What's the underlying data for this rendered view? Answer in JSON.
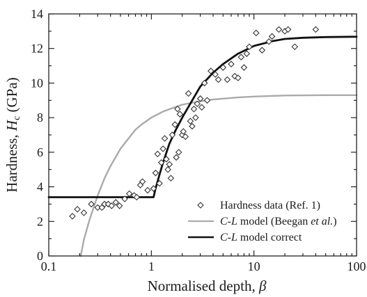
{
  "chart_data": {
    "type": "scatter",
    "x_scale": "log",
    "xlim": [
      0.1,
      100
    ],
    "ylim": [
      0,
      14
    ],
    "x_ticks": [
      "0.1",
      "1",
      "10",
      "100"
    ],
    "y_ticks": [
      "0",
      "2",
      "4",
      "6",
      "8",
      "10",
      "12",
      "14"
    ],
    "xlabel": "Normalised depth, β",
    "ylabel": "Hardness, Hc (GPa)",
    "ylabel_parts": {
      "main": "Hardness, ",
      "var": "H",
      "sub": "c",
      "unit": " (GPa)"
    },
    "xlabel_parts": {
      "main": "Normalised depth, ",
      "var": "β"
    },
    "grid": false,
    "legend_position": "bottom-right",
    "series": [
      {
        "name": "Hardness data (Ref. 1)",
        "legend_parts": [
          "Hardness data (Ref. 1)"
        ],
        "kind": "scatter",
        "marker": "diamond-open",
        "color": "#333333",
        "points": [
          [
            0.17,
            2.3
          ],
          [
            0.19,
            2.7
          ],
          [
            0.22,
            2.5
          ],
          [
            0.26,
            3.0
          ],
          [
            0.3,
            2.8
          ],
          [
            0.33,
            2.8
          ],
          [
            0.35,
            3.0
          ],
          [
            0.38,
            3.0
          ],
          [
            0.41,
            2.9
          ],
          [
            0.45,
            3.1
          ],
          [
            0.49,
            2.9
          ],
          [
            0.55,
            3.3
          ],
          [
            0.61,
            3.6
          ],
          [
            0.68,
            3.5
          ],
          [
            0.72,
            3.4
          ],
          [
            0.78,
            4.1
          ],
          [
            0.82,
            4.3
          ],
          [
            0.92,
            3.8
          ],
          [
            1.05,
            3.9
          ],
          [
            1.1,
            4.8
          ],
          [
            1.15,
            5.9
          ],
          [
            1.2,
            4.2
          ],
          [
            1.25,
            5.4
          ],
          [
            1.3,
            6.2
          ],
          [
            1.35,
            6.8
          ],
          [
            1.4,
            5.6
          ],
          [
            1.45,
            5.0
          ],
          [
            1.5,
            5.3
          ],
          [
            1.55,
            4.5
          ],
          [
            1.6,
            7.0
          ],
          [
            1.7,
            7.6
          ],
          [
            1.75,
            5.7
          ],
          [
            1.8,
            8.5
          ],
          [
            1.85,
            6.0
          ],
          [
            1.9,
            8.2
          ],
          [
            2.0,
            7.0
          ],
          [
            2.05,
            7.2
          ],
          [
            2.15,
            6.9
          ],
          [
            2.3,
            9.4
          ],
          [
            2.4,
            7.8
          ],
          [
            2.5,
            7.5
          ],
          [
            2.6,
            8.5
          ],
          [
            2.7,
            8.0
          ],
          [
            2.8,
            8.8
          ],
          [
            3.0,
            9.1
          ],
          [
            3.1,
            8.6
          ],
          [
            3.3,
            10.0
          ],
          [
            3.5,
            9.0
          ],
          [
            3.8,
            10.7
          ],
          [
            4.2,
            10.5
          ],
          [
            4.5,
            10.2
          ],
          [
            5.0,
            10.9
          ],
          [
            5.5,
            10.2
          ],
          [
            6.0,
            11.1
          ],
          [
            6.5,
            10.4
          ],
          [
            7.0,
            10.3
          ],
          [
            7.5,
            11.5
          ],
          [
            8.0,
            10.9
          ],
          [
            8.5,
            11.7
          ],
          [
            9.0,
            12.1
          ],
          [
            10.5,
            12.9
          ],
          [
            12.0,
            11.9
          ],
          [
            14.0,
            12.4
          ],
          [
            15.0,
            12.7
          ],
          [
            17.5,
            13.1
          ],
          [
            20.0,
            13.0
          ],
          [
            21.5,
            13.1
          ],
          [
            25.0,
            12.1
          ],
          [
            40.0,
            13.1
          ]
        ]
      },
      {
        "name": "C-L model (Beegan et al.)",
        "legend_parts": [
          "C-L",
          " model (Beegan ",
          "et al.",
          ")"
        ],
        "kind": "line",
        "color": "#aaaaaa",
        "points": [
          [
            0.205,
            0.0
          ],
          [
            0.22,
            0.95
          ],
          [
            0.25,
            2.1
          ],
          [
            0.3,
            3.5
          ],
          [
            0.35,
            4.5
          ],
          [
            0.4,
            5.2
          ],
          [
            0.5,
            6.2
          ],
          [
            0.6,
            6.8
          ],
          [
            0.7,
            7.3
          ],
          [
            0.8,
            7.6
          ],
          [
            1.0,
            8.0
          ],
          [
            1.3,
            8.35
          ],
          [
            1.6,
            8.55
          ],
          [
            2.0,
            8.75
          ],
          [
            3.0,
            8.95
          ],
          [
            4.0,
            9.05
          ],
          [
            5.0,
            9.1
          ],
          [
            7.0,
            9.17
          ],
          [
            10.0,
            9.22
          ],
          [
            20.0,
            9.28
          ],
          [
            50.0,
            9.3
          ],
          [
            100.0,
            9.3
          ]
        ]
      },
      {
        "name": "C-L model correct",
        "legend_parts": [
          "C-L",
          " model correct"
        ],
        "kind": "line",
        "color": "#111111",
        "points": [
          [
            0.1,
            3.4
          ],
          [
            1.05,
            3.4
          ],
          [
            1.1,
            3.9
          ],
          [
            1.2,
            4.7
          ],
          [
            1.3,
            5.4
          ],
          [
            1.5,
            6.5
          ],
          [
            1.7,
            7.2
          ],
          [
            2.0,
            8.0
          ],
          [
            2.5,
            9.0
          ],
          [
            3.0,
            9.8
          ],
          [
            4.0,
            10.6
          ],
          [
            5.0,
            11.1
          ],
          [
            7.0,
            11.7
          ],
          [
            10.0,
            12.15
          ],
          [
            15.0,
            12.42
          ],
          [
            20.0,
            12.55
          ],
          [
            30.0,
            12.62
          ],
          [
            50.0,
            12.66
          ],
          [
            100.0,
            12.68
          ]
        ]
      }
    ]
  }
}
